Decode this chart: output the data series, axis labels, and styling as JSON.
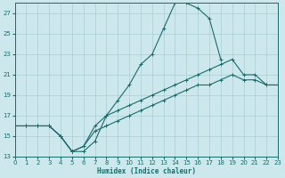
{
  "xlabel": "Humidex (Indice chaleur)",
  "bg_color": "#cce8ec",
  "line_color": "#1a6b6b",
  "grid_color": "#aacdd4",
  "xlim": [
    0,
    23
  ],
  "ylim": [
    13,
    28
  ],
  "yticks": [
    13,
    15,
    17,
    19,
    21,
    23,
    25,
    27
  ],
  "xticks": [
    0,
    1,
    2,
    3,
    4,
    5,
    6,
    7,
    8,
    9,
    10,
    11,
    12,
    13,
    14,
    15,
    16,
    17,
    18,
    19,
    20,
    21,
    22,
    23
  ],
  "line1_x": [
    0,
    1,
    2,
    3,
    4,
    5,
    6,
    7,
    8,
    9,
    10,
    11,
    12,
    13,
    14,
    15,
    16,
    17,
    18
  ],
  "line1_y": [
    16,
    16,
    16,
    16,
    15,
    13.5,
    13.5,
    14.5,
    17,
    18.5,
    20,
    22,
    23,
    25.5,
    28,
    28,
    27.5,
    26.5,
    22.5
  ],
  "line2_x": [
    0,
    1,
    2,
    3,
    4,
    5,
    6,
    7,
    8,
    9,
    10,
    11,
    12,
    13,
    14,
    15,
    16,
    17,
    18,
    19,
    20,
    21,
    22,
    23
  ],
  "line2_y": [
    16,
    16,
    16,
    16,
    15,
    13.5,
    14,
    16,
    17,
    17.5,
    18,
    18.5,
    19,
    19.5,
    20,
    20.5,
    21,
    21.5,
    22,
    22.5,
    21,
    21,
    20,
    20
  ],
  "line3_x": [
    0,
    1,
    2,
    3,
    4,
    5,
    6,
    7,
    8,
    9,
    10,
    11,
    12,
    13,
    14,
    15,
    16,
    17,
    18,
    19,
    20,
    21,
    22,
    23
  ],
  "line3_y": [
    16,
    16,
    16,
    16,
    15,
    13.5,
    14,
    15.5,
    16,
    16.5,
    17,
    17.5,
    18,
    18.5,
    19,
    19.5,
    20,
    20,
    20.5,
    21,
    20.5,
    20.5,
    20,
    20
  ]
}
